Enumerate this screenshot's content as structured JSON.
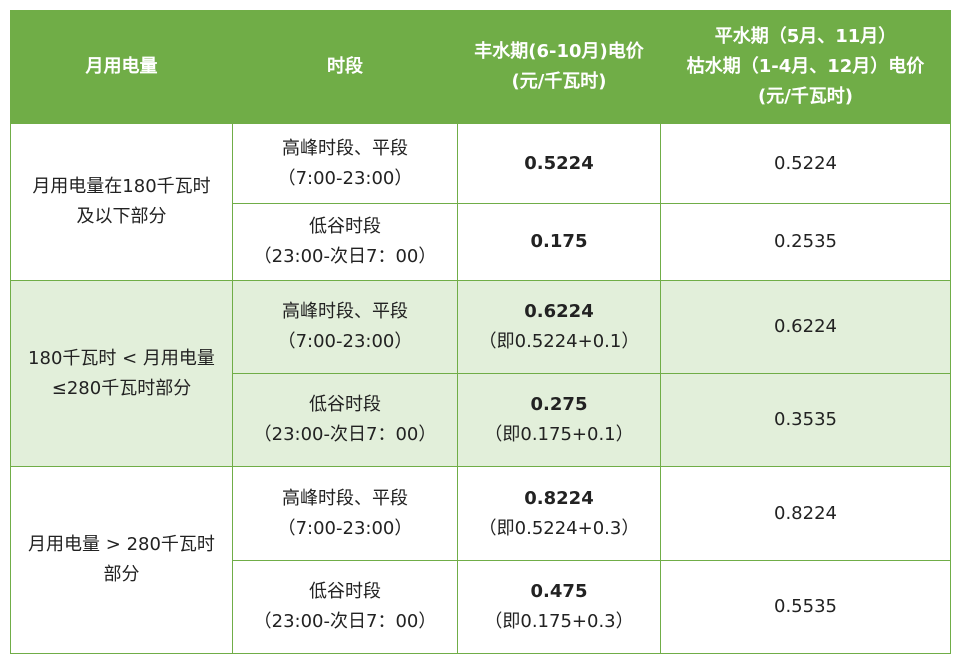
{
  "table": {
    "header": [
      [
        "月用电量"
      ],
      [
        "时段"
      ],
      [
        "丰水期(6-10月)电价",
        "(元/千瓦时)"
      ],
      [
        "平水期（5月、11月）",
        "枯水期（1-4月、12月）电价",
        "(元/千瓦时)"
      ]
    ],
    "groups": [
      {
        "label": [
          "月用电量在180千瓦时",
          "及以下部分"
        ],
        "rows": [
          {
            "period": "高峰时段、平段",
            "time": "（7:00-23:00）",
            "wet_price": 0.5224,
            "other_price": 0.5224
          },
          {
            "period": "低谷时段",
            "time": "（23:00-次日7：00）",
            "wet_price": 0.175,
            "other_price": 0.2535
          }
        ]
      },
      {
        "label": [
          "180千瓦时 < 月用电量",
          "≤280千瓦时部分"
        ],
        "rows": [
          {
            "period": "高峰时段、平段",
            "time": "（7:00-23:00）",
            "wet_price": 0.6224,
            "note": "（即0.5224+0.1）",
            "other_price": 0.6224
          },
          {
            "period": "低谷时段",
            "time": "（23:00-次日7：00）",
            "wet_price": 0.275,
            "note": "（即0.175+0.1）",
            "other_price": 0.3535
          }
        ]
      },
      {
        "label": [
          "月用电量 > 280千瓦时",
          "部分"
        ],
        "rows": [
          {
            "period": "高峰时段、平段",
            "time": "（7:00-23:00）",
            "wet_price": 0.8224,
            "note": "（即0.5224+0.3）",
            "other_price": 0.8224
          },
          {
            "period": "低谷时段",
            "time": "（23:00-次日7：00）",
            "wet_price": 0.475,
            "note": "（即0.175+0.3）",
            "other_price": 0.5535
          }
        ]
      }
    ]
  }
}
